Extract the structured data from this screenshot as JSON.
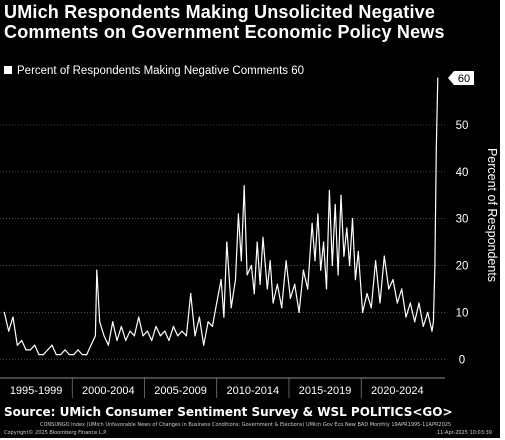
{
  "title_line1": "UMich Respondents Making Unsolicited Negative",
  "title_line2": "Comments on Government Economic Policy News",
  "source": "Source: UMich Consumer Sentiment Survey & WSL POLITICS<GO>",
  "footer_left_top": "CONSUNGO Index (UMich Unfavorable News of Changes in Business Conditions: Government & Elections) UMich Gov Eco New BAD  Monthly 19APR1995-11APR2025",
  "footer_left_bottom": "Copyright© 2025 Bloomberg Finance L.P.",
  "footer_right": "11-Apr-2025 10:03:39",
  "colors": {
    "background": "#000000",
    "line": "#ffffff",
    "text": "#ffffff",
    "grid": "#6a6a6a"
  },
  "chart_data": {
    "type": "line",
    "legend": "Percent of Respondents Making Negative Comments 60",
    "legend_position": "top-left",
    "ylabel": "Percent of Respondents",
    "y_axis_side": "right",
    "ylim": [
      -4,
      63
    ],
    "yticks": [
      "0",
      "10",
      "20",
      "30",
      "40",
      "50"
    ],
    "last_value_label": "60",
    "xlim": [
      1995.0,
      2025.8
    ],
    "x_tick_labels": [
      "1995-1999",
      "2000-2004",
      "2005-2009",
      "2010-2014",
      "2015-2019",
      "2020-2024"
    ],
    "grid": "horizontal dotted",
    "series": [
      {
        "x": [
          1995.3,
          1995.6,
          1995.9,
          1996.2,
          1996.5,
          1996.8,
          1997.1,
          1997.4,
          1997.7,
          1998.0,
          1998.3,
          1998.6,
          1998.9,
          1999.2,
          1999.5,
          1999.8,
          2000.1,
          2000.4,
          2000.7,
          2001.0,
          2001.3,
          2001.6,
          2001.7,
          2001.9,
          2002.2,
          2002.5,
          2002.8,
          2003.1,
          2003.4,
          2003.7,
          2004.0,
          2004.3,
          2004.6,
          2004.9,
          2005.2,
          2005.5,
          2005.8,
          2006.1,
          2006.4,
          2006.7,
          2007.0,
          2007.3,
          2007.6,
          2007.9,
          2008.2,
          2008.5,
          2008.8,
          2009.1,
          2009.4,
          2009.7,
          2010.0,
          2010.3,
          2010.5,
          2010.7,
          2011.0,
          2011.3,
          2011.5,
          2011.7,
          2011.9,
          2012.1,
          2012.4,
          2012.6,
          2012.8,
          2013.0,
          2013.2,
          2013.5,
          2013.7,
          2013.9,
          2014.2,
          2014.5,
          2014.8,
          2015.1,
          2015.4,
          2015.7,
          2016.0,
          2016.3,
          2016.6,
          2016.8,
          2017.0,
          2017.2,
          2017.4,
          2017.6,
          2017.8,
          2018.0,
          2018.2,
          2018.4,
          2018.6,
          2018.8,
          2019.0,
          2019.2,
          2019.4,
          2019.6,
          2019.8,
          2020.1,
          2020.4,
          2020.7,
          2021.0,
          2021.3,
          2021.6,
          2021.9,
          2022.2,
          2022.5,
          2022.8,
          2023.1,
          2023.4,
          2023.7,
          2024.0,
          2024.3,
          2024.6,
          2024.9,
          2025.0,
          2025.1,
          2025.2,
          2025.3
        ],
        "y": [
          10,
          6,
          9,
          3,
          4,
          2,
          2,
          3,
          1,
          1,
          2,
          3,
          1,
          1,
          2,
          1,
          1,
          2,
          1,
          1,
          3,
          5,
          19,
          8,
          5,
          3,
          8,
          4,
          7,
          4,
          6,
          5,
          9,
          5,
          6,
          4,
          7,
          5,
          6,
          4,
          7,
          5,
          6,
          5,
          14,
          5,
          9,
          3,
          8,
          7,
          12,
          17,
          9,
          25,
          11,
          17,
          31,
          21,
          37,
          18,
          20,
          14,
          25,
          16,
          26,
          15,
          21,
          12,
          16,
          11,
          21,
          13,
          16,
          10,
          19,
          15,
          29,
          21,
          31,
          19,
          25,
          15,
          36,
          20,
          33,
          18,
          35,
          22,
          28,
          20,
          30,
          17,
          23,
          10,
          14,
          11,
          21,
          12,
          22,
          15,
          17,
          12,
          15,
          9,
          12,
          8,
          12,
          7,
          10,
          6,
          8,
          20,
          45,
          60
        ]
      }
    ]
  }
}
